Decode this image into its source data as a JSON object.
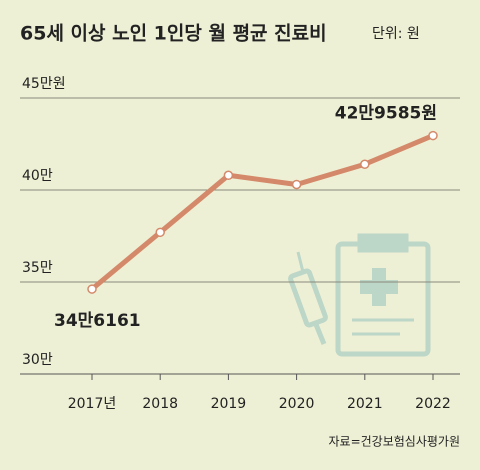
{
  "chart_data": {
    "type": "line",
    "title": "65세 이상 노인 1인당 월 평균 진료비",
    "subtitle": "단위: 원",
    "source": "자료=건강보험심사평가원",
    "categories": [
      "2017년",
      "2018",
      "2019",
      "2020",
      "2021",
      "2022"
    ],
    "series": [
      {
        "color": "#d4896a",
        "values": [
          346161,
          377000,
          408000,
          403000,
          414000,
          429585
        ],
        "value_labels": [
          "34만6161",
          null,
          null,
          null,
          null,
          "42만9585원"
        ]
      }
    ],
    "ylim": [
      300000,
      450000
    ],
    "yticks": [
      {
        "value": 300000,
        "label": "30만"
      },
      {
        "value": 350000,
        "label": "35만"
      },
      {
        "value": 400000,
        "label": "40만"
      },
      {
        "value": 450000,
        "label": "45만원"
      }
    ],
    "grid": true
  }
}
